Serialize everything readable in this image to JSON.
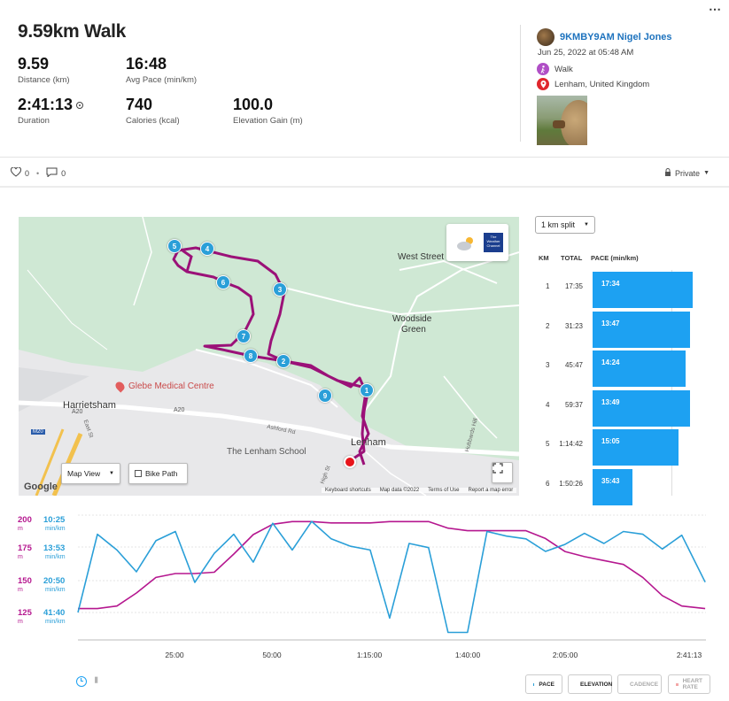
{
  "activity": {
    "title": "9.59km Walk",
    "stats": [
      {
        "value": "9.59",
        "label": "Distance (km)"
      },
      {
        "value": "16:48",
        "label": "Avg Pace (min/km)"
      },
      {
        "value": "2:41:13",
        "label": "Duration"
      },
      {
        "value": "740",
        "label": "Calories (kcal)"
      },
      {
        "value": "100.0",
        "label": "Elevation Gain (m)"
      }
    ]
  },
  "header": {
    "more_icon": "⋯"
  },
  "user": {
    "name": "9KMBY9AM Nigel Jones",
    "date": "Jun 25, 2022 at 05:48 AM",
    "activity_type": "Walk",
    "location": "Lenham, United Kingdom"
  },
  "social": {
    "likes": "0",
    "comments": "0",
    "privacy": "Private"
  },
  "map": {
    "labels": {
      "west_street": "West Street",
      "woodside": "Woodside",
      "green": "Green",
      "harrietsham": "Harrietsham",
      "glebe": "Glebe Medical Centre",
      "lenham": "Lenham",
      "school": "The Lenham School",
      "a20_left": "A20",
      "a20_mid": "A20",
      "m20": "M20",
      "ashford_rd": "Ashford Rd",
      "east_st": "East St",
      "high_st": "High St",
      "hubbards": "Hubbards Hill"
    },
    "weather_brand": "The Weather Channel",
    "map_view_label": "Map View",
    "bike_path_label": "Bike Path",
    "google": "Google",
    "footer": [
      "Keyboard shortcuts",
      "Map data ©2022",
      "Terms of Use",
      "Report a map error"
    ],
    "markers": [
      "1",
      "2",
      "3",
      "4",
      "5",
      "6",
      "7",
      "8",
      "9"
    ]
  },
  "splits": {
    "selector": "1 km split",
    "headers": {
      "km": "KM",
      "total": "TOTAL",
      "pace": "PACE (min/km)"
    },
    "rows": [
      {
        "km": "1",
        "total": "17:35",
        "pace": "17:34",
        "fraction": 0.88
      },
      {
        "km": "2",
        "total": "31:23",
        "pace": "13:47",
        "fraction": 0.86
      },
      {
        "km": "3",
        "total": "45:47",
        "pace": "14:24",
        "fraction": 0.82
      },
      {
        "km": "4",
        "total": "59:37",
        "pace": "13:49",
        "fraction": 0.86
      },
      {
        "km": "5",
        "total": "1:14:42",
        "pace": "15:05",
        "fraction": 0.76
      },
      {
        "km": "6",
        "total": "1:50:26",
        "pace": "35:43",
        "fraction": 0.35
      }
    ]
  },
  "chart_data": {
    "type": "line",
    "x_ticks": [
      "25:00",
      "50:00",
      "1:15:00",
      "1:40:00",
      "2:05:00",
      "2:41:13"
    ],
    "elevation_axis": {
      "ticks": [
        "200",
        "175",
        "150",
        "125"
      ],
      "unit": "m",
      "color": "#b5178f"
    },
    "pace_axis": {
      "ticks": [
        "10:25",
        "13:53",
        "20:50",
        "41:40"
      ],
      "unit": "min/km",
      "color": "#2a9fd8"
    },
    "x_minutes": [
      0,
      5,
      10,
      15,
      20,
      25,
      30,
      35,
      40,
      45,
      50,
      55,
      60,
      65,
      70,
      75,
      80,
      85,
      90,
      95,
      100,
      105,
      110,
      115,
      120,
      125,
      130,
      135,
      140,
      145,
      150,
      155,
      161
    ],
    "series": [
      {
        "name": "ELEVATION",
        "color": "#b5178f",
        "values": [
          128,
          128,
          130,
          140,
          152,
          155,
          155,
          156,
          170,
          185,
          193,
          195,
          195,
          194,
          194,
          194,
          195,
          195,
          195,
          190,
          188,
          188,
          188,
          188,
          182,
          172,
          168,
          165,
          162,
          152,
          138,
          130,
          128
        ]
      },
      {
        "name": "PACE",
        "color": "#2a9fd8",
        "values": [
          41.6,
          12.5,
          14.5,
          19,
          13.2,
          12.2,
          22,
          15.2,
          12.5,
          17,
          11.3,
          14.5,
          11.1,
          13,
          13.8,
          14.5,
          44,
          13.5,
          14,
          50,
          50,
          12.2,
          12.7,
          13,
          14.8,
          13.6,
          12.4,
          13.5,
          12.2,
          12.5,
          14.3,
          12.6,
          21.8
        ]
      }
    ],
    "legend": [
      "PACE",
      "ELEVATION",
      "CADENCE",
      "HEART RATE"
    ]
  }
}
